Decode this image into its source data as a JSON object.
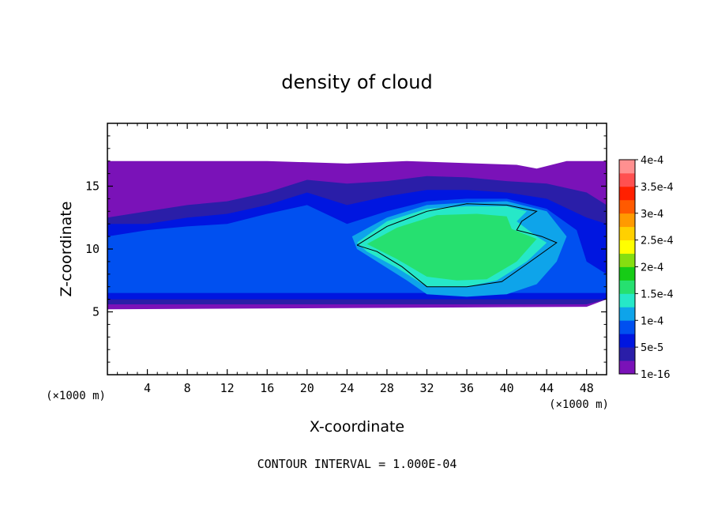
{
  "chart_data": {
    "type": "heatmap",
    "title": "density of cloud",
    "xlabel": "X-coordinate",
    "ylabel": "Z-coordinate",
    "x_unit": "(×1000 m)",
    "xlim": [
      0,
      50
    ],
    "ylim": [
      0,
      20
    ],
    "x_ticks": [
      4,
      8,
      12,
      16,
      20,
      24,
      28,
      32,
      36,
      40,
      44,
      48
    ],
    "y_ticks": [
      5,
      10,
      15
    ],
    "footnote": "CONTOUR INTERVAL = 1.000E-04",
    "colorbar": {
      "labels": [
        "1e-16",
        "5e-5",
        "1e-4",
        "1.5e-4",
        "2e-4",
        "2.5e-4",
        "3e-4",
        "3.5e-4",
        "4e-4"
      ],
      "colors": [
        "#7a12b8",
        "#2a1ea8",
        "#0016e0",
        "#0050f0",
        "#0ea4ea",
        "#26e8c8",
        "#26e070",
        "#16cc16",
        "#86de10",
        "#ffff00",
        "#ffd000",
        "#ff9a00",
        "#ff5a00",
        "#ff2000",
        "#ff5050",
        "#ff9090"
      ]
    },
    "regions": [
      {
        "level": 0,
        "points": [
          [
            0,
            17
          ],
          [
            16,
            17
          ],
          [
            24,
            16.8
          ],
          [
            30,
            17
          ],
          [
            41,
            16.7
          ],
          [
            43,
            16.4
          ],
          [
            46,
            17
          ],
          [
            50,
            17
          ],
          [
            50,
            6
          ],
          [
            48,
            5.4
          ],
          [
            0,
            5.2
          ]
        ]
      },
      {
        "level": 1,
        "points": [
          [
            0,
            12.5
          ],
          [
            4,
            13
          ],
          [
            8,
            13.5
          ],
          [
            12,
            13.8
          ],
          [
            16,
            14.5
          ],
          [
            20,
            15.5
          ],
          [
            24,
            15.2
          ],
          [
            28,
            15.4
          ],
          [
            32,
            15.8
          ],
          [
            36,
            15.7
          ],
          [
            40,
            15.4
          ],
          [
            44,
            15.2
          ],
          [
            48,
            14.5
          ],
          [
            50,
            13.5
          ],
          [
            50,
            6
          ],
          [
            48,
            5.6
          ],
          [
            0,
            5.6
          ]
        ]
      },
      {
        "level": 2,
        "points": [
          [
            0,
            12
          ],
          [
            4,
            12
          ],
          [
            8,
            12.5
          ],
          [
            12,
            12.8
          ],
          [
            16,
            13.5
          ],
          [
            20,
            14.5
          ],
          [
            24,
            13.5
          ],
          [
            28,
            14.2
          ],
          [
            32,
            14.7
          ],
          [
            36,
            14.7
          ],
          [
            40,
            14.5
          ],
          [
            44,
            14
          ],
          [
            48,
            12.5
          ],
          [
            50,
            12
          ],
          [
            50,
            6
          ],
          [
            0,
            6
          ]
        ]
      },
      {
        "level": 3,
        "points": [
          [
            0,
            11
          ],
          [
            4,
            11.5
          ],
          [
            8,
            11.8
          ],
          [
            12,
            12
          ],
          [
            16,
            12.8
          ],
          [
            20,
            13.5
          ],
          [
            24,
            12
          ],
          [
            28,
            13
          ],
          [
            32,
            13.8
          ],
          [
            36,
            14
          ],
          [
            40,
            14
          ],
          [
            44,
            13.2
          ],
          [
            47,
            11.5
          ],
          [
            48,
            9
          ],
          [
            50,
            8
          ],
          [
            50,
            6.5
          ],
          [
            0,
            6.5
          ]
        ]
      },
      {
        "level": 4,
        "points": [
          [
            24.5,
            11
          ],
          [
            28,
            12.5
          ],
          [
            32,
            13.5
          ],
          [
            36,
            13.7
          ],
          [
            40,
            13.8
          ],
          [
            44,
            13
          ],
          [
            46,
            11
          ],
          [
            45,
            9
          ],
          [
            43,
            7.2
          ],
          [
            40,
            6.4
          ],
          [
            36,
            6.2
          ],
          [
            32,
            6.4
          ],
          [
            30,
            7.5
          ],
          [
            27,
            9
          ],
          [
            25,
            10
          ]
        ]
      },
      {
        "level": 5,
        "points": [
          [
            25,
            10.5
          ],
          [
            28,
            12.2
          ],
          [
            32,
            13.2
          ],
          [
            36,
            13.4
          ],
          [
            40,
            13.4
          ],
          [
            42,
            13
          ],
          [
            41,
            12.2
          ],
          [
            43,
            11
          ],
          [
            44,
            10.5
          ],
          [
            42,
            9
          ],
          [
            39,
            7.5
          ],
          [
            36,
            7
          ],
          [
            32,
            7
          ],
          [
            29,
            8.5
          ],
          [
            26,
            9.8
          ]
        ]
      },
      {
        "level": 6,
        "points": [
          [
            26,
            10.4
          ],
          [
            29,
            11.7
          ],
          [
            33,
            12.7
          ],
          [
            37,
            12.8
          ],
          [
            40,
            12.6
          ],
          [
            40.5,
            11.6
          ],
          [
            43,
            10.8
          ],
          [
            41,
            9
          ],
          [
            38,
            7.6
          ],
          [
            35,
            7.5
          ],
          [
            32,
            7.8
          ],
          [
            29,
            9.2
          ]
        ]
      }
    ],
    "contours": [
      [
        [
          25,
          10.3
        ],
        [
          28,
          11.8
        ],
        [
          32,
          13
        ],
        [
          36,
          13.6
        ],
        [
          40,
          13.5
        ],
        [
          43,
          13
        ],
        [
          41.5,
          12.2
        ],
        [
          41,
          11.5
        ],
        [
          43.5,
          11
        ],
        [
          45,
          10.5
        ],
        [
          42,
          8.8
        ],
        [
          39.5,
          7.4
        ],
        [
          36,
          7
        ],
        [
          32,
          7
        ],
        [
          29.5,
          8.6
        ],
        [
          27,
          9.8
        ],
        [
          25,
          10.3
        ]
      ]
    ]
  }
}
